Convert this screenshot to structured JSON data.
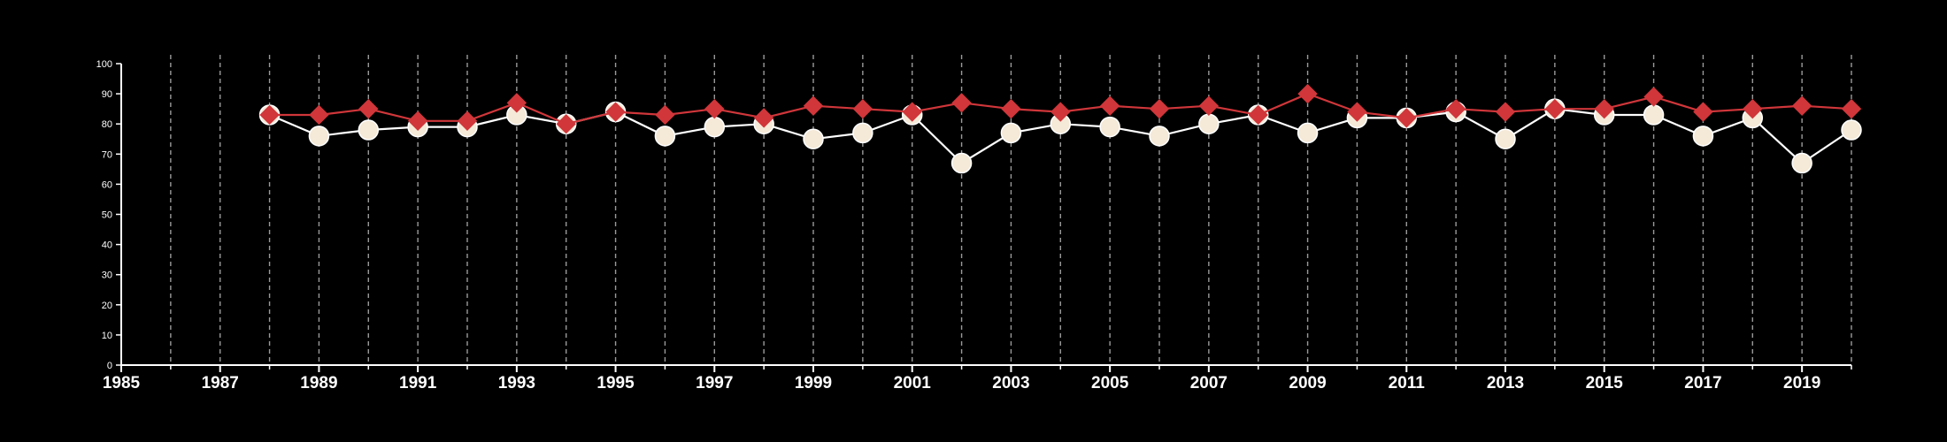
{
  "chart_data": {
    "type": "line",
    "title": "",
    "xlabel": "",
    "ylabel": "",
    "xlim": [
      1985,
      2020
    ],
    "ylim": [
      0,
      100
    ],
    "x_ticks": [
      "1985",
      "1987",
      "1989",
      "1991",
      "1993",
      "1995",
      "1997",
      "1999",
      "2001",
      "2003",
      "2005",
      "2007",
      "2009",
      "2011",
      "2013",
      "2015",
      "2017",
      "2019"
    ],
    "y_ticks": [
      "0",
      "10",
      "20",
      "30",
      "40",
      "50",
      "60",
      "70",
      "80",
      "90",
      "100"
    ],
    "grid": "vertical dashed lines at every year",
    "legend": "none",
    "background_color": "#000000",
    "x": [
      1988,
      1989,
      1990,
      1991,
      1992,
      1993,
      1994,
      1995,
      1996,
      1997,
      1998,
      1999,
      2000,
      2001,
      2002,
      2003,
      2004,
      2005,
      2006,
      2007,
      2008,
      2009,
      2010,
      2011,
      2012,
      2013,
      2014,
      2015,
      2016,
      2017,
      2018,
      2019,
      2020
    ],
    "series": [
      {
        "marker": "circle",
        "color": "#f5e9d7",
        "line_color": "#ffffff",
        "values": [
          83,
          76,
          78,
          79,
          79,
          83,
          80,
          84,
          76,
          79,
          80,
          75,
          77,
          83,
          67,
          77,
          80,
          79,
          76,
          80,
          83,
          77,
          82,
          82,
          84,
          75,
          85,
          83,
          83,
          76,
          82,
          67,
          78
        ]
      },
      {
        "marker": "diamond",
        "color": "#d0363a",
        "line_color": "#d0363a",
        "values": [
          83,
          83,
          85,
          81,
          81,
          87,
          80,
          84,
          83,
          85,
          82,
          86,
          85,
          84,
          87,
          85,
          84,
          86,
          85,
          86,
          83,
          90,
          84,
          82,
          85,
          84,
          85,
          85,
          89,
          84,
          85,
          86,
          85
        ]
      }
    ]
  }
}
